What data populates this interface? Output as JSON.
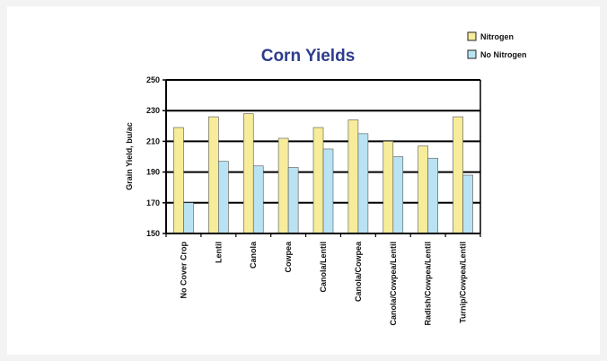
{
  "chart_data": {
    "type": "bar",
    "title": "Corn Yields",
    "xlabel": "",
    "ylabel": "Grain Yield, bu/ac",
    "ylim": [
      150,
      250
    ],
    "yticks": [
      150,
      170,
      190,
      210,
      230,
      250
    ],
    "grid": "horizontal",
    "legend_position": "top-right",
    "categories": [
      "No Cover Crop",
      "Lentil",
      "Canola",
      "Cowpea",
      "Canola/Lentil",
      "Canola/Cowpea",
      "Canola/Cowpea/Lentil",
      "Radish/Cowpea/Lentil",
      "Turnip/Cowpea/Lentil"
    ],
    "series": [
      {
        "name": "Nitrogen",
        "color": "#f7ec9a",
        "values": [
          219,
          226,
          228,
          212,
          219,
          224,
          210,
          207,
          226
        ]
      },
      {
        "name": "No Nitrogen",
        "color": "#b9e3f3",
        "values": [
          170,
          197,
          194,
          193,
          205,
          215,
          200,
          199,
          188
        ]
      }
    ]
  }
}
